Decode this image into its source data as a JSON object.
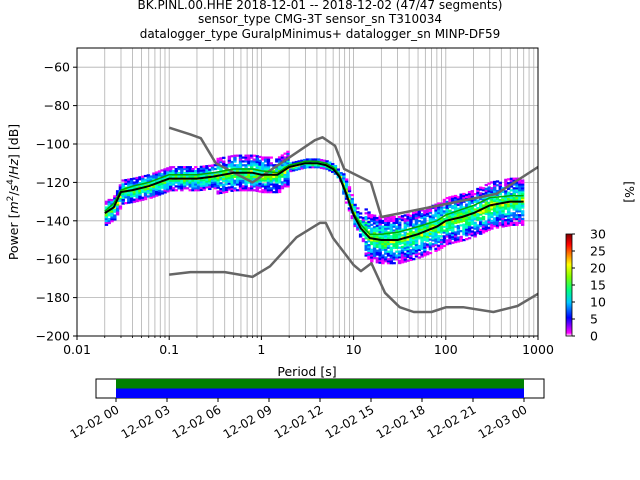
{
  "title": {
    "line1": "BK.PINL.00.HHE   2018-12-01 -- 2018-12-02  (47/47 segments)",
    "line2": "sensor_type CMG-3T sensor_sn T310034",
    "line3": "datalogger_type GuralpMinimus+ datalogger_sn MINP-DF59"
  },
  "chart_data": [
    {
      "type": "heatmap",
      "xlabel": "Period [s]",
      "ylabel": "Power [m^2/s^4/Hz] [dB]",
      "x_scale": "log",
      "xlim": [
        0.01,
        1000
      ],
      "ylim": [
        -200,
        -50
      ],
      "x_ticks": [
        "0.01",
        "0.1",
        "1",
        "10",
        "100",
        "1000"
      ],
      "x_tick_values": [
        0.01,
        0.1,
        1,
        10,
        100,
        1000
      ],
      "y_ticks": [
        "−60",
        "−80",
        "−100",
        "−120",
        "−140",
        "−160",
        "−180",
        "−200"
      ],
      "y_tick_values": [
        -60,
        -80,
        -100,
        -120,
        -140,
        -160,
        -180,
        -200
      ],
      "grid": true,
      "colorbar": {
        "label": "[%]",
        "range": [
          0,
          30
        ],
        "ticks": [
          "0",
          "5",
          "10",
          "15",
          "20",
          "25",
          "30"
        ],
        "tick_values": [
          0,
          5,
          10,
          15,
          20,
          25,
          30
        ],
        "colors": [
          "#ffffff",
          "#ff00ff",
          "#0000ff",
          "#00c8ff",
          "#00ff80",
          "#80ff00",
          "#ffff00",
          "#ff8000",
          "#ff0000",
          "#800000"
        ]
      },
      "series": [
        {
          "name": "",
          "style": "black-mode-line",
          "color": "#000000",
          "x": [
            0.02,
            0.025,
            0.03,
            0.04,
            0.06,
            0.1,
            0.15,
            0.2,
            0.3,
            0.5,
            0.8,
            1,
            1.5,
            2,
            3,
            4,
            5,
            6,
            7,
            8,
            10,
            12,
            15,
            20,
            30,
            50,
            80,
            100,
            150,
            200,
            300,
            500,
            700
          ],
          "y": [
            -136,
            -133,
            -125,
            -124,
            -122,
            -118,
            -118,
            -118,
            -117,
            -115,
            -115,
            -116,
            -116,
            -112,
            -110,
            -110,
            -111,
            -113,
            -117,
            -124,
            -137,
            -144,
            -149,
            -150,
            -150,
            -147,
            -143,
            -140,
            -138,
            -136,
            -132,
            -130,
            -130
          ]
        },
        {
          "name": "",
          "style": "mean-line",
          "color": "#00aa00",
          "x": [
            0.02,
            0.025,
            0.03,
            0.04,
            0.06,
            0.1,
            0.15,
            0.2,
            0.3,
            0.5,
            0.8,
            1,
            1.5,
            2,
            3,
            4,
            5,
            6,
            7,
            8,
            10,
            12,
            15,
            20,
            30,
            50,
            80,
            100,
            150,
            200,
            300,
            500,
            700
          ],
          "y": [
            -135,
            -131,
            -124,
            -122,
            -120,
            -116,
            -116,
            -116,
            -115,
            -113,
            -113,
            -114,
            -115,
            -111,
            -109,
            -109,
            -110,
            -112,
            -116,
            -123,
            -136,
            -142,
            -147,
            -147,
            -146,
            -143,
            -140,
            -137,
            -134,
            -132,
            -128,
            -127,
            -127
          ]
        },
        {
          "name": "",
          "style": "noise-model",
          "color": "#666666",
          "x": [
            0.1,
            0.17,
            0.22,
            0.32,
            0.8,
            3.8,
            4.6,
            6.3,
            7.9,
            15.4,
            20,
            354.8,
            1000
          ],
          "y": [
            -91.5,
            -95,
            -97,
            -110,
            -120,
            -98,
            -96.5,
            -101,
            -113,
            -120,
            -138,
            -126,
            -112
          ]
        },
        {
          "name": "",
          "style": "noise-model",
          "color": "#666666",
          "x": [
            0.1,
            0.17,
            0.4,
            0.8,
            1.24,
            2.4,
            4.3,
            5,
            6,
            10,
            12,
            15.6,
            21.9,
            31.6,
            45,
            70,
            101,
            154,
            328,
            600,
            1000
          ],
          "y": [
            -168,
            -166.7,
            -166.7,
            -169.2,
            -163.7,
            -148.6,
            -141.1,
            -141.1,
            -149,
            -163,
            -166.2,
            -162.1,
            -177.5,
            -185,
            -187.5,
            -187.5,
            -185,
            -185,
            -187.5,
            -184.4,
            -178
          ]
        }
      ]
    },
    {
      "type": "timeline",
      "ticks": [
        "12-02 00",
        "12-02 03",
        "12-02 06",
        "12-02 09",
        "12-02 12",
        "12-02 15",
        "12-02 18",
        "12-02 21",
        "12-03 00"
      ],
      "coverage": [
        {
          "name": "",
          "color": "#008000",
          "from": "12-02 00",
          "to": "12-03 00"
        },
        {
          "name": "",
          "color": "#0000ff",
          "from": "12-02 00",
          "to": "12-03 00"
        }
      ]
    }
  ]
}
